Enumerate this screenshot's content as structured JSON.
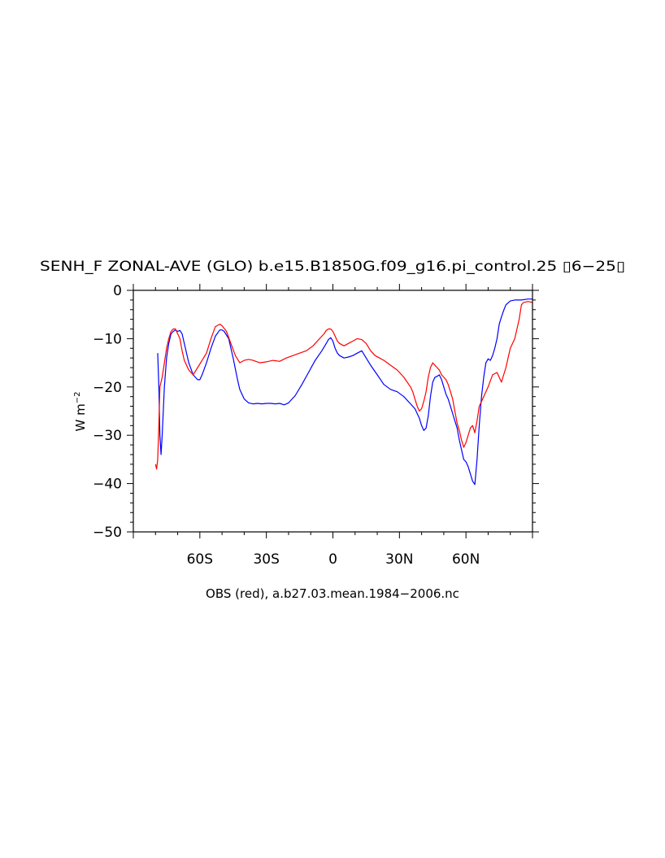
{
  "chart_data": {
    "type": "line",
    "title": "SENH_F ZONAL-AVE (GLO) b.e15.B1850G.f09_g16.pi_control.25 ▯6−25▯",
    "ylabel_base": "W m",
    "ylabel_exp": "−2",
    "xlabel": "OBS (red), a.b27.03.mean.1984−2006.nc",
    "xlim": [
      -90,
      90
    ],
    "ylim": [
      -50,
      0
    ],
    "x_ticks": [
      {
        "value": -60,
        "label": "60S"
      },
      {
        "value": -30,
        "label": "30S"
      },
      {
        "value": 0,
        "label": "0"
      },
      {
        "value": 30,
        "label": "30N"
      },
      {
        "value": 60,
        "label": "60N"
      }
    ],
    "y_ticks": [
      {
        "value": 0,
        "label": "0"
      },
      {
        "value": -10,
        "label": "−10"
      },
      {
        "value": -20,
        "label": "−20"
      },
      {
        "value": -30,
        "label": "−30"
      },
      {
        "value": -40,
        "label": "−40"
      },
      {
        "value": -50,
        "label": "−50"
      }
    ],
    "series": [
      {
        "color": "#0000ff",
        "x": [
          -79,
          -78.5,
          -78,
          -77.5,
          -77,
          -76,
          -75,
          -74,
          -73,
          -72,
          -71,
          -70,
          -69,
          -68,
          -67,
          -65,
          -63,
          -61,
          -60,
          -59,
          -57,
          -55,
          -53,
          -51,
          -50,
          -49,
          -47,
          -45,
          -43,
          -42,
          -40,
          -38,
          -36,
          -34,
          -32,
          -30,
          -28,
          -26,
          -24,
          -22,
          -20,
          -17,
          -14,
          -11,
          -8,
          -5,
          -3,
          -2,
          -1,
          0,
          1,
          2,
          3,
          5,
          7,
          9,
          11,
          13,
          15,
          17,
          20,
          23,
          26,
          29,
          32,
          35,
          37,
          39,
          40,
          41,
          42,
          43,
          44,
          45,
          46,
          47,
          48,
          49,
          50,
          51,
          52,
          53,
          54,
          55,
          56,
          57,
          58,
          59,
          60,
          61,
          62,
          63,
          64,
          65,
          66,
          67,
          68,
          69,
          70,
          71,
          72,
          73,
          74,
          75,
          76,
          77,
          78,
          80,
          82,
          85,
          88,
          90
        ],
        "y": [
          -13,
          -20,
          -30,
          -34,
          -30,
          -20,
          -14,
          -11,
          -9,
          -8.5,
          -8.2,
          -8.5,
          -8.3,
          -9,
          -11,
          -15,
          -17.5,
          -18.5,
          -18.5,
          -17.5,
          -15,
          -12,
          -9.5,
          -8.2,
          -8.2,
          -8.5,
          -10,
          -14,
          -18.5,
          -20.5,
          -22.5,
          -23.3,
          -23.5,
          -23.4,
          -23.5,
          -23.4,
          -23.4,
          -23.5,
          -23.4,
          -23.7,
          -23.3,
          -21.8,
          -19.5,
          -17,
          -14.5,
          -12.5,
          -11,
          -10.2,
          -9.8,
          -10.5,
          -12,
          -13,
          -13.5,
          -14,
          -13.8,
          -13.5,
          -13,
          -12.5,
          -14,
          -15.5,
          -17.5,
          -19.5,
          -20.5,
          -21,
          -22,
          -23.5,
          -24.5,
          -26.5,
          -28,
          -29,
          -28.5,
          -26,
          -22,
          -19,
          -18,
          -17.8,
          -17.5,
          -18.5,
          -20,
          -21.5,
          -22.5,
          -24,
          -25.5,
          -27,
          -28.5,
          -31,
          -33,
          -35,
          -35.5,
          -36.5,
          -38,
          -39.5,
          -40.2,
          -35,
          -28,
          -22,
          -18,
          -15,
          -14.2,
          -14.5,
          -13.5,
          -12,
          -10,
          -7,
          -5.5,
          -4.2,
          -3,
          -2.2,
          -2,
          -2,
          -1.8,
          -1.8
        ]
      },
      {
        "color": "#ff0000",
        "x": [
          -80,
          -79.5,
          -79,
          -78.5,
          -78,
          -77,
          -76,
          -75,
          -74,
          -73,
          -72,
          -71,
          -70,
          -69,
          -68,
          -67,
          -65,
          -63,
          -61,
          -59,
          -57,
          -55,
          -53,
          -51,
          -50,
          -48,
          -46,
          -44,
          -42,
          -40,
          -38,
          -36,
          -33,
          -30,
          -27,
          -24,
          -21,
          -18,
          -15,
          -12,
          -9,
          -6,
          -4,
          -3,
          -2,
          -1,
          0,
          1,
          2,
          3,
          5,
          7,
          9,
          11,
          13,
          15,
          17,
          19,
          21,
          23,
          26,
          29,
          32,
          35,
          36,
          37,
          38,
          39,
          40,
          41,
          42,
          43,
          44,
          45,
          46,
          47,
          48,
          49,
          50,
          51,
          52,
          53,
          54,
          55,
          56,
          57,
          58,
          59,
          60,
          61,
          62,
          63,
          64,
          65,
          66,
          67,
          68,
          70,
          72,
          74,
          76,
          78,
          80,
          82,
          84,
          85,
          86,
          88,
          90
        ],
        "y": [
          -36,
          -37,
          -35,
          -28,
          -20,
          -18,
          -15,
          -12,
          -10,
          -8.5,
          -8,
          -8,
          -9,
          -10,
          -12.5,
          -14.5,
          -16.5,
          -17.5,
          -16,
          -14.5,
          -13,
          -10,
          -7.5,
          -7,
          -7.3,
          -8.5,
          -11,
          -13.5,
          -15,
          -14.5,
          -14.3,
          -14.5,
          -15,
          -14.8,
          -14.5,
          -14.7,
          -14,
          -13.5,
          -13,
          -12.5,
          -11.5,
          -10,
          -9,
          -8.3,
          -8,
          -8,
          -8.5,
          -9.5,
          -10.5,
          -11,
          -11.5,
          -11,
          -10.5,
          -10,
          -10.2,
          -11,
          -12.5,
          -13.5,
          -14,
          -14.5,
          -15.5,
          -16.5,
          -18,
          -20,
          -21,
          -22.5,
          -24,
          -25,
          -24.5,
          -23,
          -21,
          -18,
          -16,
          -15,
          -15.5,
          -16,
          -16.5,
          -17.5,
          -18,
          -18.5,
          -19.5,
          -21,
          -22.5,
          -25,
          -27.5,
          -29,
          -31,
          -32.5,
          -31.5,
          -30,
          -28.5,
          -28,
          -29.5,
          -27,
          -24,
          -23,
          -22,
          -20,
          -17.5,
          -17,
          -19,
          -16,
          -12,
          -10,
          -6,
          -3,
          -2.5,
          -2.3,
          -2.5
        ]
      }
    ]
  }
}
